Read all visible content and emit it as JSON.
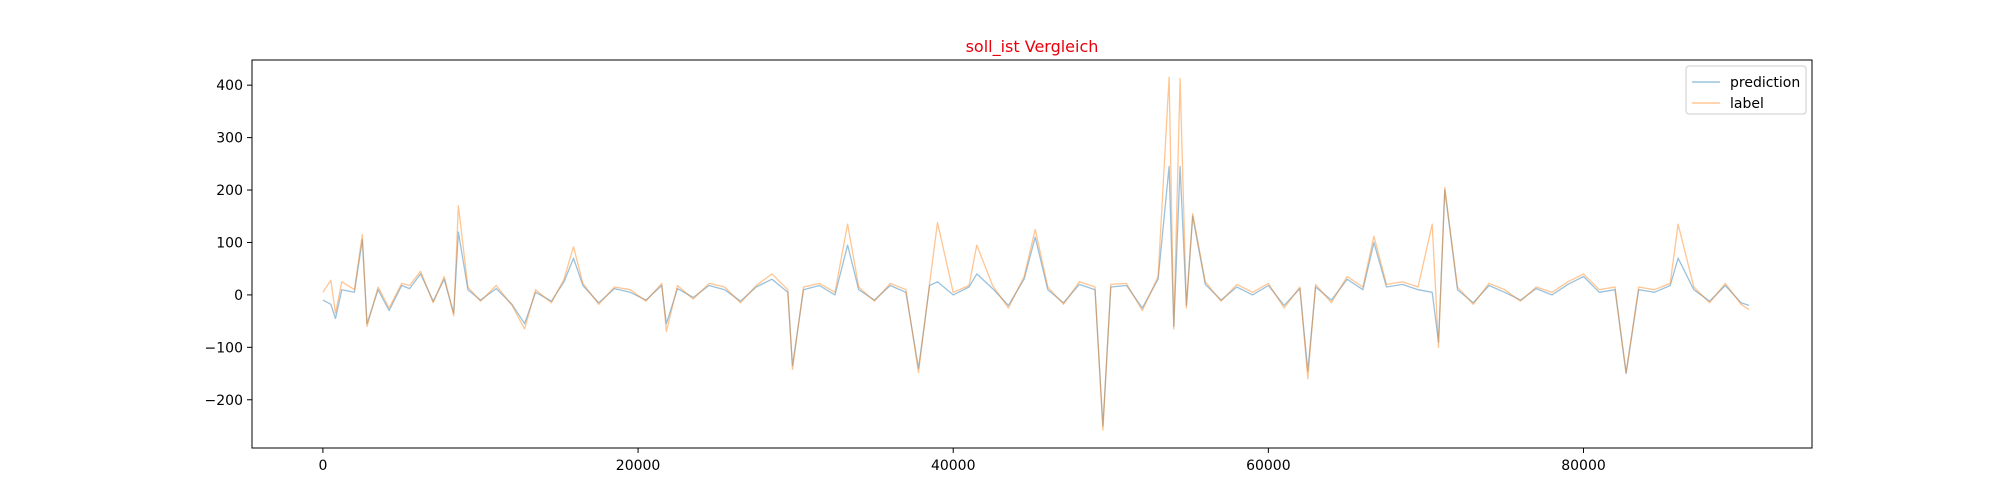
{
  "chart_data": {
    "type": "line",
    "title": "soll_ist Vergleich",
    "title_color": "#e8000b",
    "xlabel": "",
    "ylabel": "",
    "xlim": [
      -4500,
      94500
    ],
    "ylim": [
      -292,
      448
    ],
    "x_ticks": [
      0,
      20000,
      40000,
      60000,
      80000
    ],
    "y_ticks": [
      -200,
      -100,
      0,
      100,
      200,
      300,
      400
    ],
    "grid": false,
    "legend_position": "top-right",
    "n_points_approx": 900,
    "x_range": [
      0,
      90500
    ],
    "series": [
      {
        "name": "prediction",
        "color": "#1f77b4",
        "alpha": 0.45,
        "points": [
          [
            0,
            -10
          ],
          [
            500,
            -18
          ],
          [
            800,
            -45
          ],
          [
            1200,
            10
          ],
          [
            2000,
            5
          ],
          [
            2500,
            105
          ],
          [
            2800,
            -55
          ],
          [
            3500,
            10
          ],
          [
            4200,
            -30
          ],
          [
            5000,
            18
          ],
          [
            5500,
            12
          ],
          [
            6200,
            40
          ],
          [
            7000,
            -12
          ],
          [
            7700,
            30
          ],
          [
            8300,
            -35
          ],
          [
            8600,
            120
          ],
          [
            9200,
            10
          ],
          [
            10000,
            -10
          ],
          [
            11000,
            12
          ],
          [
            12000,
            -18
          ],
          [
            12800,
            -55
          ],
          [
            13500,
            5
          ],
          [
            14500,
            -12
          ],
          [
            15300,
            25
          ],
          [
            15900,
            70
          ],
          [
            16500,
            18
          ],
          [
            17500,
            -15
          ],
          [
            18500,
            12
          ],
          [
            19500,
            5
          ],
          [
            20500,
            -10
          ],
          [
            21500,
            18
          ],
          [
            21800,
            -55
          ],
          [
            22500,
            12
          ],
          [
            23500,
            -5
          ],
          [
            24500,
            18
          ],
          [
            25500,
            10
          ],
          [
            26500,
            -12
          ],
          [
            27500,
            15
          ],
          [
            28500,
            30
          ],
          [
            29500,
            5
          ],
          [
            29800,
            -135
          ],
          [
            30500,
            10
          ],
          [
            31500,
            18
          ],
          [
            32500,
            0
          ],
          [
            33300,
            95
          ],
          [
            34000,
            10
          ],
          [
            35000,
            -10
          ],
          [
            36000,
            18
          ],
          [
            37000,
            5
          ],
          [
            37800,
            -140
          ],
          [
            38500,
            18
          ],
          [
            39000,
            25
          ],
          [
            40000,
            0
          ],
          [
            41000,
            15
          ],
          [
            41500,
            40
          ],
          [
            42500,
            12
          ],
          [
            43500,
            -20
          ],
          [
            44500,
            30
          ],
          [
            45200,
            110
          ],
          [
            46000,
            10
          ],
          [
            47000,
            -15
          ],
          [
            48000,
            20
          ],
          [
            49000,
            10
          ],
          [
            49500,
            -250
          ],
          [
            50000,
            15
          ],
          [
            51000,
            18
          ],
          [
            52000,
            -25
          ],
          [
            53000,
            30
          ],
          [
            53700,
            245
          ],
          [
            54000,
            -60
          ],
          [
            54400,
            245
          ],
          [
            54800,
            -20
          ],
          [
            55200,
            150
          ],
          [
            56000,
            20
          ],
          [
            57000,
            -10
          ],
          [
            58000,
            15
          ],
          [
            59000,
            0
          ],
          [
            60000,
            18
          ],
          [
            61000,
            -20
          ],
          [
            62000,
            12
          ],
          [
            62500,
            -145
          ],
          [
            63000,
            15
          ],
          [
            64000,
            -10
          ],
          [
            65000,
            30
          ],
          [
            66000,
            10
          ],
          [
            66700,
            100
          ],
          [
            67500,
            15
          ],
          [
            68500,
            20
          ],
          [
            69500,
            10
          ],
          [
            70400,
            5
          ],
          [
            70800,
            -90
          ],
          [
            71200,
            200
          ],
          [
            72000,
            10
          ],
          [
            73000,
            -15
          ],
          [
            74000,
            18
          ],
          [
            75000,
            5
          ],
          [
            76000,
            -10
          ],
          [
            77000,
            12
          ],
          [
            78000,
            0
          ],
          [
            79000,
            20
          ],
          [
            80000,
            35
          ],
          [
            81000,
            5
          ],
          [
            82000,
            10
          ],
          [
            82700,
            -150
          ],
          [
            83500,
            10
          ],
          [
            84500,
            5
          ],
          [
            85500,
            18
          ],
          [
            86000,
            70
          ],
          [
            87000,
            10
          ],
          [
            88000,
            -12
          ],
          [
            89000,
            18
          ],
          [
            90000,
            -15
          ],
          [
            90500,
            -20
          ]
        ]
      },
      {
        "name": "label",
        "color": "#ff7f0e",
        "alpha": 0.45,
        "points": [
          [
            0,
            5
          ],
          [
            500,
            28
          ],
          [
            800,
            -35
          ],
          [
            1200,
            25
          ],
          [
            2000,
            10
          ],
          [
            2500,
            115
          ],
          [
            2800,
            -60
          ],
          [
            3500,
            15
          ],
          [
            4200,
            -25
          ],
          [
            5000,
            22
          ],
          [
            5500,
            18
          ],
          [
            6200,
            45
          ],
          [
            7000,
            -15
          ],
          [
            7700,
            35
          ],
          [
            8300,
            -40
          ],
          [
            8600,
            170
          ],
          [
            9200,
            15
          ],
          [
            10000,
            -12
          ],
          [
            11000,
            18
          ],
          [
            12000,
            -20
          ],
          [
            12800,
            -65
          ],
          [
            13500,
            10
          ],
          [
            14500,
            -15
          ],
          [
            15300,
            30
          ],
          [
            15900,
            92
          ],
          [
            16500,
            22
          ],
          [
            17500,
            -18
          ],
          [
            18500,
            15
          ],
          [
            19500,
            10
          ],
          [
            20500,
            -12
          ],
          [
            21500,
            22
          ],
          [
            21800,
            -70
          ],
          [
            22500,
            18
          ],
          [
            23500,
            -8
          ],
          [
            24500,
            22
          ],
          [
            25500,
            15
          ],
          [
            26500,
            -15
          ],
          [
            27500,
            18
          ],
          [
            28500,
            40
          ],
          [
            29500,
            10
          ],
          [
            29800,
            -142
          ],
          [
            30500,
            15
          ],
          [
            31500,
            22
          ],
          [
            32500,
            5
          ],
          [
            33300,
            135
          ],
          [
            34000,
            15
          ],
          [
            35000,
            -12
          ],
          [
            36000,
            22
          ],
          [
            37000,
            10
          ],
          [
            37800,
            -148
          ],
          [
            38500,
            22
          ],
          [
            39000,
            138
          ],
          [
            40000,
            5
          ],
          [
            41000,
            18
          ],
          [
            41500,
            95
          ],
          [
            42500,
            18
          ],
          [
            43500,
            -25
          ],
          [
            44500,
            35
          ],
          [
            45200,
            125
          ],
          [
            46000,
            15
          ],
          [
            47000,
            -18
          ],
          [
            48000,
            25
          ],
          [
            49000,
            15
          ],
          [
            49500,
            -258
          ],
          [
            50000,
            20
          ],
          [
            51000,
            22
          ],
          [
            52000,
            -30
          ],
          [
            53000,
            35
          ],
          [
            53700,
            415
          ],
          [
            54000,
            -65
          ],
          [
            54400,
            413
          ],
          [
            54800,
            -25
          ],
          [
            55200,
            155
          ],
          [
            56000,
            25
          ],
          [
            57000,
            -12
          ],
          [
            58000,
            20
          ],
          [
            59000,
            5
          ],
          [
            60000,
            22
          ],
          [
            61000,
            -25
          ],
          [
            62000,
            15
          ],
          [
            62500,
            -160
          ],
          [
            63000,
            20
          ],
          [
            64000,
            -15
          ],
          [
            65000,
            35
          ],
          [
            66000,
            15
          ],
          [
            66700,
            112
          ],
          [
            67500,
            20
          ],
          [
            68500,
            25
          ],
          [
            69500,
            15
          ],
          [
            70400,
            135
          ],
          [
            70800,
            -100
          ],
          [
            71200,
            205
          ],
          [
            72000,
            15
          ],
          [
            73000,
            -18
          ],
          [
            74000,
            22
          ],
          [
            75000,
            10
          ],
          [
            76000,
            -12
          ],
          [
            77000,
            15
          ],
          [
            78000,
            5
          ],
          [
            79000,
            25
          ],
          [
            80000,
            40
          ],
          [
            81000,
            10
          ],
          [
            82000,
            15
          ],
          [
            82700,
            -148
          ],
          [
            83500,
            15
          ],
          [
            84500,
            10
          ],
          [
            85500,
            22
          ],
          [
            86000,
            135
          ],
          [
            87000,
            15
          ],
          [
            88000,
            -15
          ],
          [
            89000,
            22
          ],
          [
            90000,
            -18
          ],
          [
            90500,
            -28
          ]
        ]
      }
    ]
  }
}
